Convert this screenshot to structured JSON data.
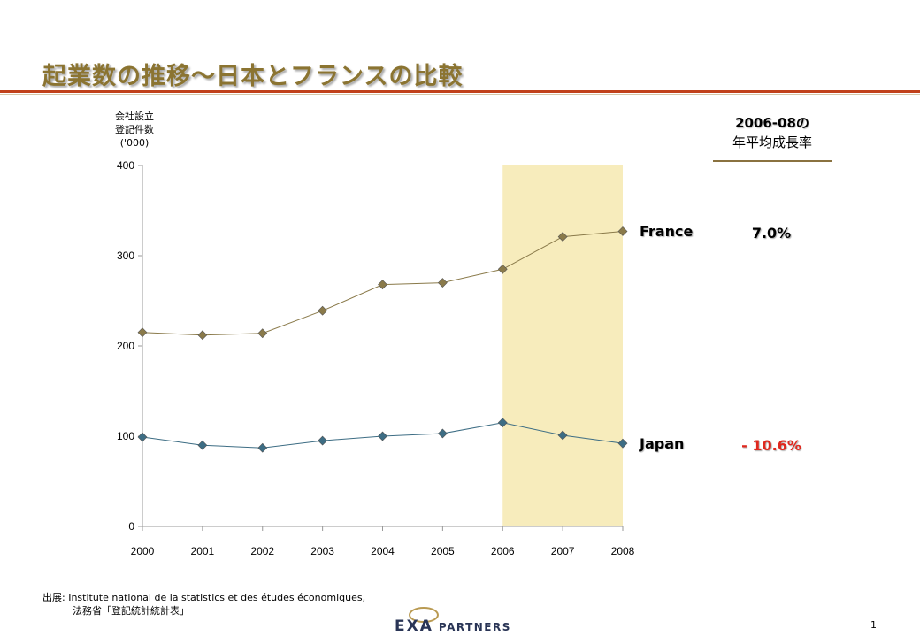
{
  "slide": {
    "title": "起業数の推移～日本とフランスの比較",
    "page_number": "1"
  },
  "chart_data": {
    "type": "line",
    "ylabel_lines": [
      "会社設立",
      "登記件数",
      "('000)"
    ],
    "categories": [
      "2000",
      "2001",
      "2002",
      "2003",
      "2004",
      "2005",
      "2006",
      "2007",
      "2008"
    ],
    "ylim": [
      0,
      400
    ],
    "yticks": [
      "0",
      "100",
      "200",
      "300",
      "400"
    ],
    "highlight_range": [
      "2006",
      "2008"
    ],
    "series": [
      {
        "name": "France",
        "color": "#8a7a4a",
        "values": [
          215,
          212,
          214,
          239,
          268,
          270,
          285,
          321,
          327
        ]
      },
      {
        "name": "Japan",
        "color": "#3d6d84",
        "values": [
          99,
          90,
          87,
          95,
          100,
          103,
          115,
          101,
          92
        ]
      }
    ],
    "highlight_color": "#f7ecbc"
  },
  "cagr": {
    "header_line1": "2006-08の",
    "header_line2": "年平均成長率",
    "france_rate": "7.0%",
    "japan_rate": "- 10.6%",
    "france_color": "#000000",
    "japan_color": "#e0281e"
  },
  "source": {
    "line1": "出展: Institute national de la statistics et des études économiques,",
    "line2": "法務省「登記統計統計表」"
  },
  "logo": {
    "exa": "EXA",
    "partners": "PARTNERS"
  }
}
